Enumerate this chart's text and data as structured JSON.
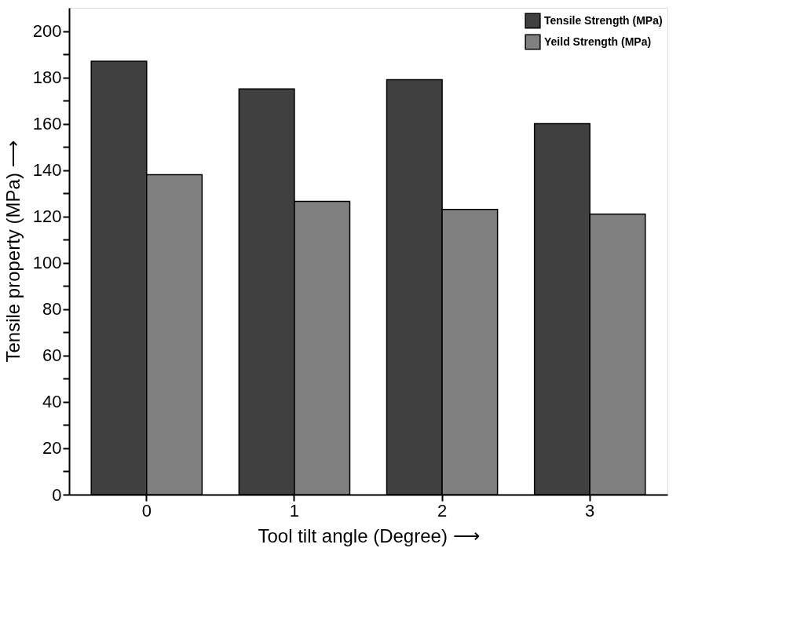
{
  "chart_data": {
    "type": "bar",
    "xlabel": "Tool tilt angle (Degree) ⟶",
    "ylabel": "Tensile property (MPa) ⟶",
    "categories": [
      "0",
      "1",
      "2",
      "3"
    ],
    "series": [
      {
        "name": "Tensile Strength (MPa)",
        "color": "#404040",
        "values": [
          187,
          175,
          179,
          160
        ]
      },
      {
        "name": "Yeild Strength (MPa)",
        "color": "#808080",
        "values": [
          138,
          126.5,
          123,
          121
        ]
      }
    ],
    "ylim": [
      0,
      210
    ],
    "yticks": [
      0,
      {
        "value": 10,
        "label": null
      },
      20,
      {
        "value": 30,
        "label": null
      },
      40,
      {
        "value": 50,
        "label": null
      },
      60,
      {
        "value": 70,
        "label": null
      },
      80,
      {
        "value": 90,
        "label": null
      },
      100,
      {
        "value": 110,
        "label": null
      },
      120,
      {
        "value": 130,
        "label": null
      },
      140,
      {
        "value": 150,
        "label": null
      },
      160,
      {
        "value": 170,
        "label": null
      },
      180,
      {
        "value": 190,
        "label": null
      },
      200
    ],
    "grid": false,
    "legend": "top right"
  }
}
